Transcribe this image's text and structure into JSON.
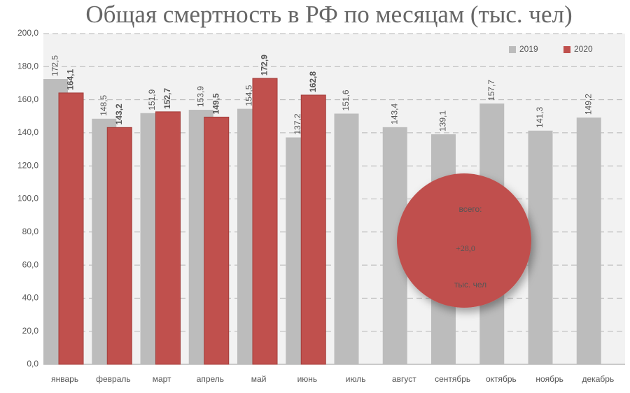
{
  "chart_data": {
    "type": "bar",
    "title": "Общая смертность в РФ по месяцам (тыс. чел)",
    "categories": [
      "январь",
      "февраль",
      "март",
      "апрель",
      "май",
      "июнь",
      "июль",
      "август",
      "сентябрь",
      "октябрь",
      "ноябрь",
      "декабрь"
    ],
    "series": [
      {
        "name": "2019",
        "color": "#bcbcbc",
        "values": [
          172.5,
          148.5,
          151.9,
          153.9,
          154.5,
          137.2,
          151.6,
          143.4,
          139.1,
          157.7,
          141.3,
          149.2
        ],
        "value_labels": [
          "172,5",
          "148,5",
          "151,9",
          "153,9",
          "154,5",
          "137,2",
          "151,6",
          "143,4",
          "139,1",
          "157,7",
          "141,3",
          "149,2"
        ]
      },
      {
        "name": "2020",
        "color": "#c0504d",
        "values": [
          164.1,
          143.2,
          152.7,
          149.5,
          172.9,
          162.8,
          null,
          null,
          null,
          null,
          null,
          null
        ],
        "value_labels": [
          "164,1",
          "143,2",
          "152,7",
          "149,5",
          "172,9",
          "162,8",
          null,
          null,
          null,
          null,
          null,
          null
        ]
      }
    ],
    "ylim": [
      0,
      200
    ],
    "yticks": [
      {
        "value": 0,
        "label": "0,0"
      },
      {
        "value": 20,
        "label": "20,0"
      },
      {
        "value": 40,
        "label": "40,0"
      },
      {
        "value": 60,
        "label": "60,0"
      },
      {
        "value": 80,
        "label": "80,0"
      },
      {
        "value": 100,
        "label": "100,0"
      },
      {
        "value": 120,
        "label": "120,0"
      },
      {
        "value": 140,
        "label": "140,0"
      },
      {
        "value": 160,
        "label": "160,0"
      },
      {
        "value": 180,
        "label": "180,0"
      },
      {
        "value": 200,
        "label": "200,0"
      }
    ],
    "grid": true,
    "legend": "top-right",
    "annotation": {
      "top": "всего:",
      "main": "+28,0",
      "bottom": "тыс. чел"
    }
  }
}
